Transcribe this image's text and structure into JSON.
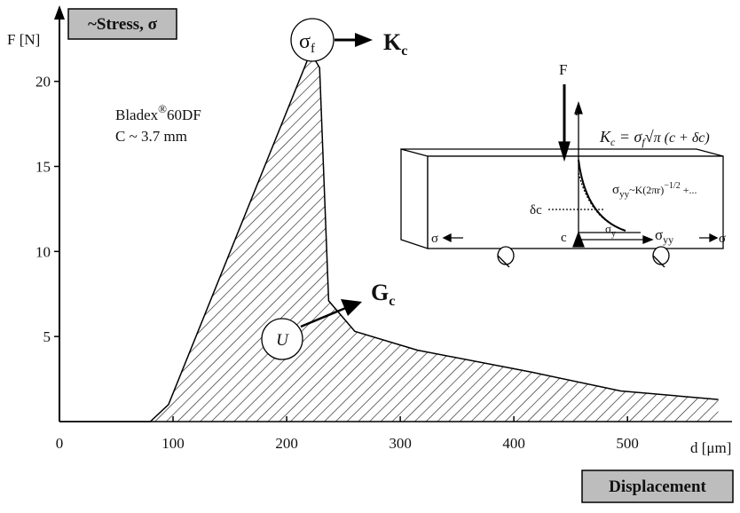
{
  "chart_data": {
    "type": "area",
    "y_label_box": "~Stress, σ",
    "y_label": "F [N]",
    "x_label": "d [μm]",
    "x_label_box": "Displacement",
    "material": {
      "name": "Bladex",
      "mark": "®",
      "grade": "60DF",
      "crack": "C ~ 3.7 mm"
    },
    "peak_marker": {
      "base": "σ",
      "sub": "f"
    },
    "peak_label": {
      "base": "K",
      "sub": "c"
    },
    "energy_marker": "U",
    "energy_label": {
      "base": "G",
      "sub": "c"
    },
    "inset": {
      "force": "F",
      "radial": "r",
      "formula": {
        "lhs": "K",
        "lhs_sub": "c",
        "eq": " = σ",
        "eq_sub": "f",
        "root": "√",
        "rhs": "π (c + δc)"
      },
      "stress_field": {
        "base": "σ",
        "sub": "yy",
        "rest": "~K(2πr)",
        "exp": "−1/2",
        "tail": " +..."
      },
      "delta_c": "δc",
      "c": "c",
      "sigma_y": {
        "base": "σ",
        "sub": "y"
      },
      "sigma_yy": {
        "base": "σ",
        "sub": "yy"
      },
      "sigma_left": "σ",
      "sigma_right": "σ"
    },
    "x": [
      0,
      80,
      96,
      221,
      229,
      237,
      260,
      315,
      416,
      494,
      580
    ],
    "series": [
      {
        "color": "#000000",
        "values": [
          0,
          0,
          1.0,
          21.7,
          20.8,
          7.1,
          5.3,
          4.2,
          2.9,
          1.8,
          1.3
        ]
      }
    ],
    "xlim": [
      0,
      585
    ],
    "ylim": [
      0,
      24
    ],
    "xticks": [
      0,
      100,
      200,
      300,
      400,
      500
    ],
    "yticks": [
      5,
      10,
      15,
      20
    ],
    "hatch": true
  }
}
